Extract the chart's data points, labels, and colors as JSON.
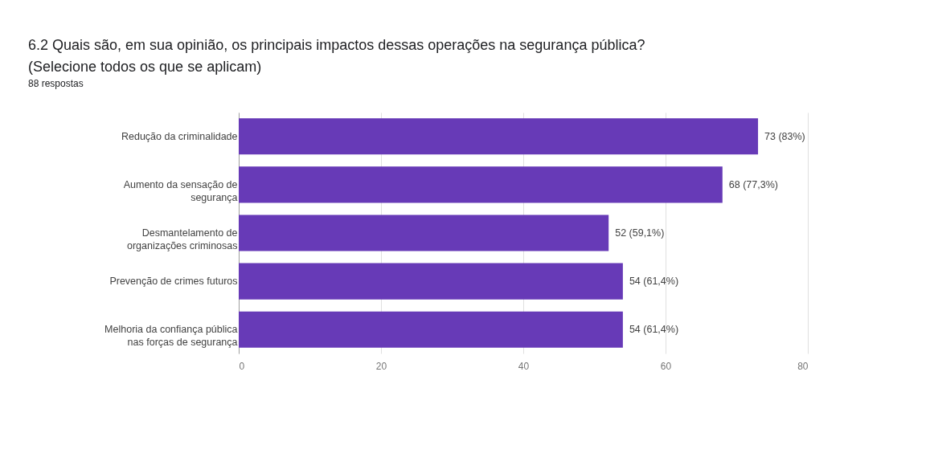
{
  "chart_data": {
    "type": "bar",
    "orientation": "horizontal",
    "title": "6.2  Quais são, em sua opinião, os principais impactos dessas operações na segurança pública? (Selecione todos os que se aplicam)",
    "subtitle": "88 respostas",
    "categories": [
      "Redução da criminalidade",
      "Aumento da sensação de segurança",
      "Desmantelamento de organizações criminosas",
      "Prevenção de crimes futuros",
      "Melhoria da confiança pública nas forças de segurança"
    ],
    "values": [
      73,
      68,
      52,
      54,
      54
    ],
    "value_labels": [
      "73 (83%)",
      "68 (77,3%)",
      "52 (59,1%)",
      "54 (61,4%)",
      "54 (61,4%)"
    ],
    "color": "#673ab7",
    "xlim": [
      0,
      80
    ],
    "xticks": [
      0,
      20,
      40,
      60,
      80
    ],
    "grid": "x"
  }
}
